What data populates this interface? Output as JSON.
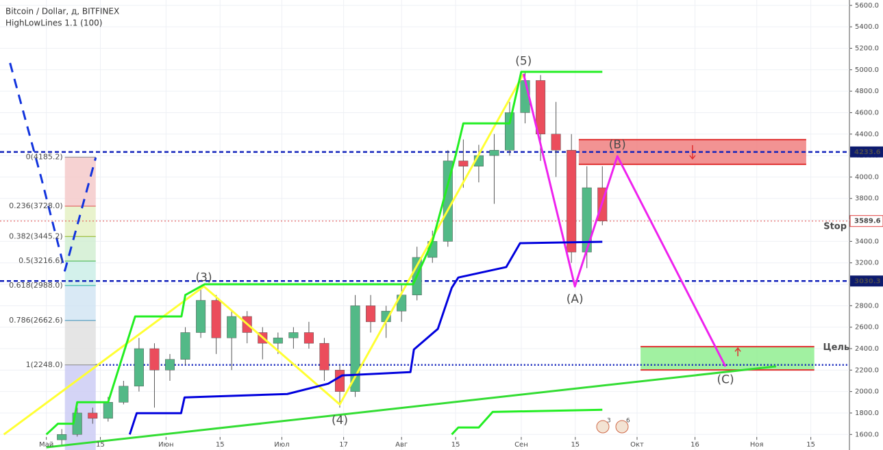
{
  "header": {
    "title": "Bitcoin / Dollar, д, BITFINEX",
    "indicator": "HighLowLines 1.1 (100)"
  },
  "chart_data": {
    "type": "candlestick",
    "x": [
      4,
      8,
      12,
      16,
      20,
      24,
      28,
      32,
      36,
      40,
      44,
      48,
      52,
      56,
      60,
      64,
      68,
      72,
      76,
      80,
      84,
      88,
      92,
      96,
      100,
      104,
      108,
      112,
      116,
      120,
      124,
      128,
      132,
      136,
      140,
      144
    ],
    "open": [
      1550,
      1600,
      1800,
      1750,
      1900,
      2050,
      2400,
      2200,
      2300,
      2550,
      2850,
      2500,
      2700,
      2550,
      2450,
      2500,
      2550,
      2450,
      2200,
      2000,
      2800,
      2650,
      2750,
      2900,
      3250,
      3400,
      4150,
      4100,
      4200,
      4250,
      4600,
      4900,
      4400,
      4250,
      3300,
      3900
    ],
    "high": [
      1650,
      1850,
      1850,
      1950,
      2100,
      2500,
      2450,
      2350,
      2600,
      2950,
      2900,
      2750,
      2750,
      2600,
      2550,
      2600,
      2650,
      2500,
      2250,
      2900,
      2900,
      2800,
      3000,
      3350,
      3500,
      4250,
      4350,
      4300,
      4400,
      4700,
      4980,
      4950,
      4700,
      4400,
      4100,
      4100
    ],
    "low": [
      1500,
      1580,
      1700,
      1720,
      1880,
      2000,
      1850,
      2100,
      2250,
      2500,
      2350,
      2200,
      2450,
      2300,
      2350,
      2400,
      2400,
      2100,
      1850,
      1950,
      2550,
      2500,
      2650,
      2850,
      3200,
      3350,
      3900,
      3950,
      3750,
      4200,
      4500,
      4150,
      4000,
      3200,
      3150,
      3550
    ],
    "close": [
      1600,
      1800,
      1750,
      1900,
      2050,
      2400,
      2200,
      2300,
      2550,
      2850,
      2500,
      2700,
      2550,
      2450,
      2500,
      2550,
      2450,
      2200,
      2000,
      2800,
      2650,
      2750,
      2900,
      3250,
      3400,
      4150,
      4100,
      4200,
      4250,
      4600,
      4900,
      4400,
      4250,
      3300,
      3900,
      3590
    ],
    "up_color": "#53b987",
    "down_color": "#eb4d5c",
    "xlim": [
      -12,
      208
    ],
    "xticks": [
      {
        "value": 0,
        "label": "Май"
      },
      {
        "value": 14,
        "label": "15"
      },
      {
        "value": 31,
        "label": "Июн"
      },
      {
        "value": 45,
        "label": "15"
      },
      {
        "value": 61,
        "label": "Июл"
      },
      {
        "value": 77,
        "label": "17"
      },
      {
        "value": 92,
        "label": "Авг"
      },
      {
        "value": 106,
        "label": "15"
      },
      {
        "value": 123,
        "label": "Сен"
      },
      {
        "value": 137,
        "label": "15"
      },
      {
        "value": 153,
        "label": "Окт"
      },
      {
        "value": 168,
        "label": "16"
      },
      {
        "value": 184,
        "label": "Ноя"
      },
      {
        "value": 198,
        "label": "15"
      }
    ],
    "ylim": [
      1455,
      5650
    ],
    "yticks": [
      {
        "value": 1600,
        "label": "1600.0"
      },
      {
        "value": 1800,
        "label": "1800.0"
      },
      {
        "value": 2000,
        "label": "2000.0"
      },
      {
        "value": 2200,
        "label": "2200.0"
      },
      {
        "value": 2400,
        "label": "2400.0"
      },
      {
        "value": 2600,
        "label": "2600.0"
      },
      {
        "value": 2800,
        "label": "2800.0"
      },
      {
        "value": 3000,
        "label": "3000.0"
      },
      {
        "value": 3200,
        "label": "3200.0"
      },
      {
        "value": 3400,
        "label": "3400.0"
      },
      {
        "value": 3600,
        "label": "3600.0"
      },
      {
        "value": 3800,
        "label": "3800.0"
      },
      {
        "value": 4000,
        "label": "4000.0"
      },
      {
        "value": 4200,
        "label": "4200.0"
      },
      {
        "value": 4400,
        "label": "4400.0"
      },
      {
        "value": 4600,
        "label": "4600.0"
      },
      {
        "value": 4800,
        "label": "4800.0"
      },
      {
        "value": 5000,
        "label": "5000.0"
      },
      {
        "value": 5200,
        "label": "5200.0"
      },
      {
        "value": 5400,
        "label": "5400.0"
      },
      {
        "value": 5600,
        "label": "5600.0"
      }
    ],
    "grid": true,
    "overlays": [
      {
        "color": "#ffff33",
        "style": "solid",
        "x": [
          -11,
          40.8,
          76,
          123.6
        ],
        "y": [
          1600,
          2980,
          1880,
          4961
        ]
      },
      {
        "color": "#ee22ee",
        "style": "solid",
        "x": [
          123.6,
          136.9,
          147.9,
          175.9
        ],
        "y": [
          4961,
          2980,
          4194,
          2233
        ]
      },
      {
        "color": "#33dd33",
        "style": "solid",
        "x": [
          0,
          189
        ],
        "y": [
          1480,
          2235
        ]
      },
      {
        "color": "#22ee22",
        "style": "solid",
        "x": [
          0,
          3,
          7,
          8,
          16,
          23,
          35,
          36,
          41,
          95,
          100,
          106,
          108,
          120,
          123,
          144
        ],
        "y": [
          1600,
          1700,
          1700,
          1900,
          1900,
          2700,
          2700,
          2900,
          3000,
          3000,
          3400,
          4200,
          4500,
          4500,
          4980,
          4980
        ]
      },
      {
        "color": "#22ee22",
        "style": "solid",
        "x": [
          105,
          106.7,
          112,
          115.6,
          144
        ],
        "y": [
          1600,
          1665,
          1665,
          1810,
          1830
        ]
      },
      {
        "color": "#0000dd",
        "style": "solid",
        "x": [
          21.6,
          23.4,
          34.9,
          35.8,
          62.4,
          73,
          76.6,
          94.3,
          95.2,
          101.4,
          105,
          106.7,
          119.1,
          122.7,
          144
        ],
        "y": [
          1600,
          1798,
          1798,
          1945,
          1977,
          2073,
          2150,
          2181,
          2392,
          2584,
          2967,
          3063,
          3160,
          3383,
          3396
        ]
      },
      {
        "color": "#1133dd",
        "style": "dashed",
        "x": [
          -9.4,
          -1.3,
          4.8,
          12.8
        ],
        "y": [
          5063,
          3990,
          3127,
          4181
        ]
      }
    ],
    "hlines": [
      {
        "value": 4233.6,
        "color": "#1122bb",
        "style": "dashed",
        "label_bg": "#0d1b6e"
      },
      {
        "value": 3030.3,
        "color": "#1122bb",
        "style": "dashed",
        "label_bg": "#0d1b6e"
      },
      {
        "value": 3589.6,
        "color": "#e04040",
        "style": "dotted",
        "label_bg": "#ffffff"
      },
      {
        "value": 2248,
        "color": "#1122bb",
        "style": "dotted"
      }
    ],
    "fib": {
      "x": [
        4.8,
        12.8
      ],
      "levels": [
        {
          "value": 4185.2,
          "label": "0(4185.2)",
          "color": "#888888",
          "fill": "#f4c7c7"
        },
        {
          "value": 3728.0,
          "label": "0.236(3728.0)",
          "color": "#e05050",
          "fill": "#e4f0c0"
        },
        {
          "value": 3445.2,
          "label": "0.382(3445.2)",
          "color": "#8fb21a",
          "fill": "#cfeecf"
        },
        {
          "value": 3216.6,
          "label": "0.5(3216.6)",
          "color": "#3cb043",
          "fill": "#c8ede6"
        },
        {
          "value": 2988.0,
          "label": "0.618(2988.0)",
          "color": "#19a99a",
          "fill": "#cfe3f2"
        },
        {
          "value": 2662.6,
          "label": "0.786(2662.6)",
          "color": "#3a8fb7",
          "fill": "#dedede"
        },
        {
          "value": 2248.0,
          "label": "1(2248.0)",
          "color": "#888888",
          "fill": "#c9c9f4"
        }
      ]
    },
    "zones": [
      {
        "x": [
          137.9,
          196.8
        ],
        "y": [
          4118,
          4348
        ],
        "color": "#f08080",
        "border": "#e03030"
      },
      {
        "x": [
          153.9,
          198.9
        ],
        "y": [
          2201,
          2418
        ],
        "color": "#90ee90",
        "border": "#e03030"
      }
    ],
    "annotations": [
      {
        "text": "(3)",
        "x": 40.8,
        "y": 3060,
        "color": "#b5a400"
      },
      {
        "text": "(4)",
        "x": 76,
        "y": 1730,
        "color": "#b5a400"
      },
      {
        "text": "(5)",
        "x": 123.6,
        "y": 5080,
        "color": "#b5a400"
      },
      {
        "text": "(A)",
        "x": 136.9,
        "y": 2860,
        "color": "#b0309a"
      },
      {
        "text": "(B)",
        "x": 147.9,
        "y": 4300,
        "color": "#b0309a"
      },
      {
        "text": "(C)",
        "x": 175.9,
        "y": 2110,
        "color": "#b0309a"
      },
      {
        "text": "Stop",
        "x": 204.3,
        "y": 3536,
        "color": "#e02020"
      },
      {
        "text": "Цель",
        "x": 204.6,
        "y": 2411,
        "color": "#22bb22"
      }
    ],
    "events": [
      "3",
      "6"
    ]
  }
}
